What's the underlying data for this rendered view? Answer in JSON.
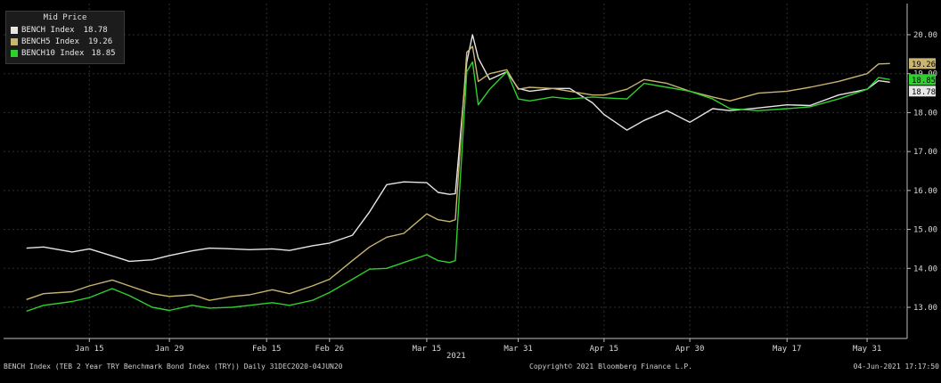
{
  "chart_data": {
    "type": "line",
    "x": [
      "2021-01-04",
      "2021-01-07",
      "2021-01-12",
      "2021-01-15",
      "2021-01-19",
      "2021-01-22",
      "2021-01-26",
      "2021-01-29",
      "2021-02-02",
      "2021-02-05",
      "2021-02-09",
      "2021-02-12",
      "2021-02-16",
      "2021-02-19",
      "2021-02-23",
      "2021-02-26",
      "2021-03-02",
      "2021-03-05",
      "2021-03-08",
      "2021-03-11",
      "2021-03-15",
      "2021-03-17",
      "2021-03-19",
      "2021-03-20",
      "2021-03-22",
      "2021-03-23",
      "2021-03-24",
      "2021-03-26",
      "2021-03-29",
      "2021-03-31",
      "2021-04-02",
      "2021-04-06",
      "2021-04-09",
      "2021-04-13",
      "2021-04-15",
      "2021-04-19",
      "2021-04-22",
      "2021-04-26",
      "2021-04-30",
      "2021-05-04",
      "2021-05-07",
      "2021-05-12",
      "2021-05-17",
      "2021-05-21",
      "2021-05-26",
      "2021-05-31",
      "2021-06-02",
      "2021-06-04"
    ],
    "series": [
      {
        "name": "BENCH Index",
        "color": "#e6e6e6",
        "values": [
          14.52,
          14.55,
          14.42,
          14.5,
          14.32,
          14.18,
          14.22,
          14.33,
          14.45,
          14.52,
          14.5,
          14.48,
          14.5,
          14.46,
          14.58,
          14.65,
          14.85,
          15.45,
          16.15,
          16.22,
          16.2,
          15.95,
          15.9,
          15.92,
          19.3,
          20.0,
          19.4,
          18.85,
          19.05,
          18.62,
          18.55,
          18.62,
          18.62,
          18.25,
          17.95,
          17.55,
          17.8,
          18.05,
          17.75,
          18.1,
          18.05,
          18.12,
          18.2,
          18.18,
          18.45,
          18.6,
          18.82,
          18.78
        ]
      },
      {
        "name": "BENCH5 Index",
        "color": "#c9b472",
        "values": [
          13.2,
          13.35,
          13.4,
          13.55,
          13.7,
          13.55,
          13.35,
          13.28,
          13.32,
          13.18,
          13.28,
          13.32,
          13.45,
          13.35,
          13.55,
          13.72,
          14.2,
          14.55,
          14.8,
          14.9,
          15.4,
          15.25,
          15.2,
          15.25,
          19.55,
          19.7,
          18.8,
          19.0,
          19.1,
          18.6,
          18.65,
          18.62,
          18.55,
          18.45,
          18.45,
          18.6,
          18.85,
          18.75,
          18.55,
          18.4,
          18.3,
          18.5,
          18.55,
          18.65,
          18.8,
          19.0,
          19.25,
          19.26
        ]
      },
      {
        "name": "BENCH10 Index",
        "color": "#2ed02e",
        "values": [
          12.9,
          13.05,
          13.15,
          13.25,
          13.48,
          13.3,
          13.0,
          12.92,
          13.05,
          12.98,
          13.0,
          13.05,
          13.12,
          13.05,
          13.18,
          13.38,
          13.72,
          13.98,
          14.0,
          14.15,
          14.35,
          14.2,
          14.15,
          14.2,
          19.05,
          19.3,
          18.2,
          18.6,
          19.05,
          18.35,
          18.3,
          18.4,
          18.35,
          18.4,
          18.38,
          18.35,
          18.75,
          18.65,
          18.55,
          18.35,
          18.1,
          18.05,
          18.1,
          18.15,
          18.35,
          18.6,
          18.9,
          18.85
        ]
      }
    ],
    "yticks": [
      "13.00",
      "14.00",
      "15.00",
      "16.00",
      "17.00",
      "18.00",
      "19.00",
      "20.00"
    ],
    "ylim": [
      12.2,
      20.8
    ],
    "xticks": [
      {
        "date": "2021-01-15",
        "label": "Jan 15"
      },
      {
        "date": "2021-01-29",
        "label": "Jan 29"
      },
      {
        "date": "2021-02-15",
        "label": "Feb 15"
      },
      {
        "date": "2021-02-26",
        "label": "Feb 26"
      },
      {
        "date": "2021-03-15",
        "label": "Mar 15"
      },
      {
        "date": "2021-03-31",
        "label": "Mar 31"
      },
      {
        "date": "2021-04-15",
        "label": "Apr 15"
      },
      {
        "date": "2021-04-30",
        "label": "Apr 30"
      },
      {
        "date": "2021-05-17",
        "label": "May 17"
      },
      {
        "date": "2021-05-31",
        "label": "May 31"
      }
    ],
    "xlim": [
      "2020-12-31",
      "2021-06-07"
    ],
    "year_label": "2021",
    "legend": {
      "title": "Mid Price",
      "entries": [
        {
          "label": "BENCH Index",
          "value": "18.78"
        },
        {
          "label": "BENCH5 Index",
          "value": "19.26"
        },
        {
          "label": "BENCH10 Index",
          "value": "18.85"
        }
      ],
      "placement": "top-left"
    },
    "end_tags": [
      {
        "series": 0,
        "text": "18.78"
      },
      {
        "series": 1,
        "text": "19.26"
      },
      {
        "series": 2,
        "text": "18.85"
      }
    ],
    "grid": true
  },
  "footer": {
    "left": "BENCH Index (TEB 2 Year TRY Benchmark Bond Index (TRY)) Daily 31DEC2020-04JUN20",
    "center": "Copyright© 2021 Bloomberg Finance L.P.",
    "right": "04-Jun-2021 17:17:50"
  },
  "colors": {
    "background": "#000000",
    "grid": "#2f2f2f",
    "axis": "#bdbdbd"
  }
}
